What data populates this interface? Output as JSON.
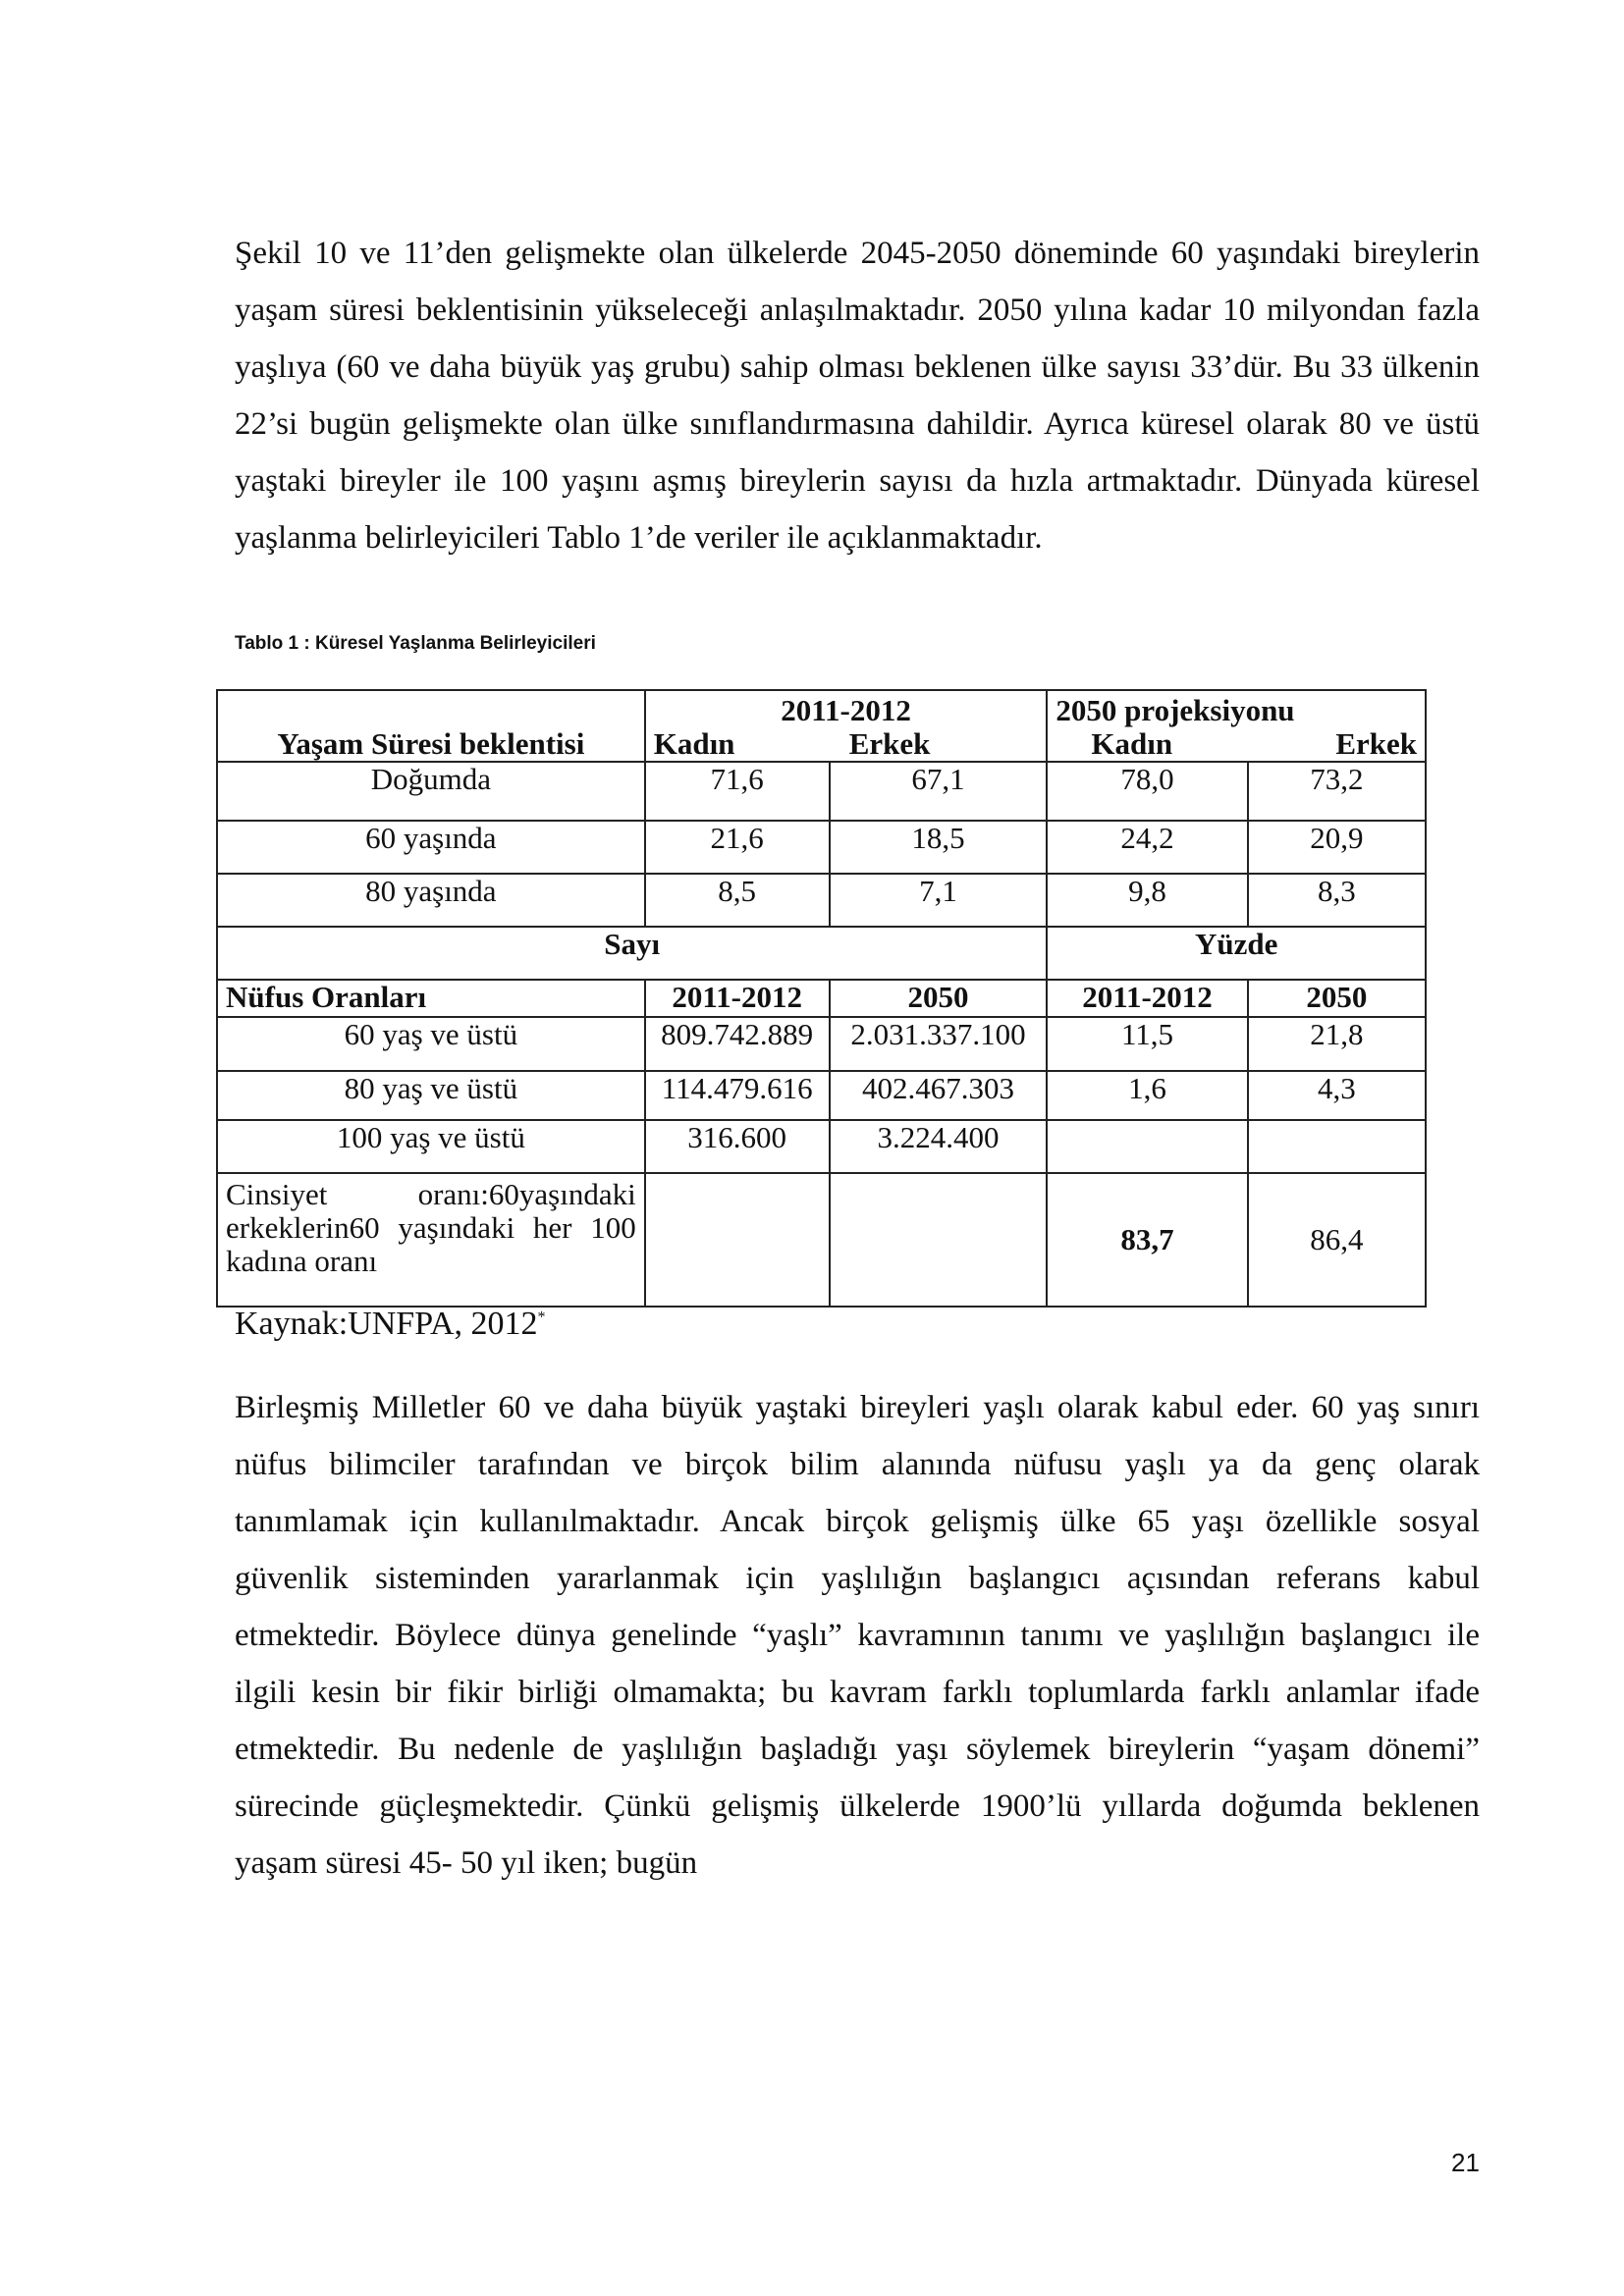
{
  "paragraph1": [
    "Şekil 10 ve 11’den gelişmekte olan ülkelerde 2045-2050 döneminde 60 yaşındaki bireylerin",
    "yaşam süresi beklentisinin yükseleceği anlaşılmaktadır. 2050 yılına kadar 10 milyondan fazla",
    "yaşlıya (60 ve daha büyük yaş grubu) sahip olması beklenen ülke sayısı 33’dür. Bu 33 ülkenin",
    "22’si bugün gelişmekte olan ülke sınıflandırmasına dahildir. Ayrıca küresel olarak 80 ve üstü",
    "yaştaki bireyler ile 100 yaşını aşmış bireylerin sayısı da hızla artmaktadır. Dünyada küresel",
    "yaşlanma belirleyicileri Tablo 1’de veriler ile açıklanmaktadır."
  ],
  "caption": "Tablo 1 : Küresel Yaşlanma Belirleyicileri",
  "table": {
    "life_header": "Yaşam Süresi beklentisi",
    "period1": "2011-2012",
    "period2": "2050 projeksiyonu",
    "female": "Kadın",
    "male": "Erkek",
    "life_rows": [
      {
        "label": "Doğumda",
        "values": [
          "71,6",
          "67,1",
          "78,0",
          "73,2"
        ]
      },
      {
        "label": "60 yaşında",
        "values": [
          "21,6",
          "18,5",
          "24,2",
          "20,9"
        ]
      },
      {
        "label": "80 yaşında",
        "values": [
          "8,5",
          "7,1",
          "9,8",
          "8,3"
        ]
      }
    ],
    "count_header": "Sayı",
    "percent_header": "Yüzde",
    "pop_header": "Nüfus Oranları",
    "pop_cols": [
      "2011-2012",
      "2050",
      "2011-2012",
      "2050"
    ],
    "pop_rows": [
      {
        "label": "60 yaş ve üstü",
        "values": [
          "809.742.889",
          "2.031.337.100",
          "11,5",
          "21,8"
        ]
      },
      {
        "label": "80 yaş ve üstü",
        "values": [
          "114.479.616",
          "402.467.303",
          "1,6",
          "4,3"
        ]
      },
      {
        "label": "100 yaş ve üstü",
        "values": [
          "316.600",
          "3.224.400",
          "",
          ""
        ]
      }
    ],
    "sex_ratio": {
      "label_lines": [
        "Cinsiyet oranı:60yaşındaki",
        "erkeklerin60 yaşındaki her 100",
        "kadına oranı"
      ],
      "values": [
        "",
        "",
        "83,7",
        "86,4"
      ]
    }
  },
  "source": "Kaynak:UNFPA, 2012",
  "source_mark": "*",
  "paragraph2": [
    "Birleşmiş Milletler 60 ve daha büyük yaştaki bireyleri yaşlı olarak kabul eder. 60 yaş sınırı",
    "nüfus bilimciler tarafından ve birçok bilim alanında nüfusu yaşlı ya da genç olarak",
    "tanımlamak için kullanılmaktadır. Ancak birçok gelişmiş ülke 65 yaşı özellikle sosyal",
    "güvenlik sisteminden yararlanmak için yaşlılığın başlangıcı açısından referans kabul",
    "etmektedir. Böylece dünya genelinde “yaşlı” kavramının tanımı ve yaşlılığın başlangıcı ile",
    "ilgili kesin bir fikir birliği olmamakta; bu kavram farklı toplumlarda farklı anlamlar ifade",
    "etmektedir. Bu nedenle de yaşlılığın başladığı yaşı söylemek bireylerin “yaşam dönemi”",
    "sürecinde güçleşmektedir. Çünkü gelişmiş ülkelerde 1900’lü yıllarda doğumda beklenen",
    "yaşam süresi 45- 50 yıl iken; bugün"
  ],
  "page_number": "21"
}
